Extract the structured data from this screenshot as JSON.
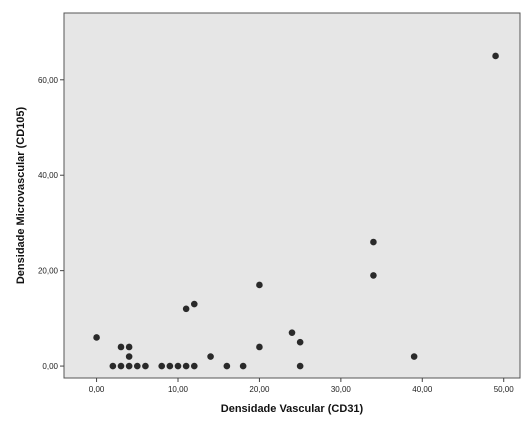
{
  "chart_data": {
    "type": "scatter",
    "title": "",
    "xlabel": "Densidade Vascular (CD31)",
    "ylabel": "Densidade Microvascular (CD105)",
    "xlim": [
      -4,
      52
    ],
    "ylim": [
      -2.5,
      74
    ],
    "x_ticks": [
      0,
      10,
      20,
      30,
      40,
      50
    ],
    "x_tick_labels": [
      "0,00",
      "10,00",
      "20,00",
      "30,00",
      "40,00",
      "50,00"
    ],
    "y_ticks": [
      0,
      20,
      40,
      60
    ],
    "y_tick_labels": [
      "0,00",
      "20,00",
      "40,00",
      "60,00"
    ],
    "grid": false,
    "colors": {
      "plot_background": "#e6e6e6",
      "marker": "#2a2a2a",
      "frame": "#555555"
    },
    "points": [
      {
        "x": 0,
        "y": 6
      },
      {
        "x": 2,
        "y": 0
      },
      {
        "x": 3,
        "y": 0
      },
      {
        "x": 3,
        "y": 4
      },
      {
        "x": 4,
        "y": 0
      },
      {
        "x": 4,
        "y": 2
      },
      {
        "x": 4,
        "y": 4
      },
      {
        "x": 5,
        "y": 0
      },
      {
        "x": 6,
        "y": 0
      },
      {
        "x": 8,
        "y": 0
      },
      {
        "x": 9,
        "y": 0
      },
      {
        "x": 10,
        "y": 0
      },
      {
        "x": 11,
        "y": 0
      },
      {
        "x": 11,
        "y": 12
      },
      {
        "x": 12,
        "y": 0
      },
      {
        "x": 12,
        "y": 13
      },
      {
        "x": 14,
        "y": 2
      },
      {
        "x": 16,
        "y": 0
      },
      {
        "x": 18,
        "y": 0
      },
      {
        "x": 20,
        "y": 4
      },
      {
        "x": 20,
        "y": 17
      },
      {
        "x": 24,
        "y": 7
      },
      {
        "x": 25,
        "y": 0
      },
      {
        "x": 25,
        "y": 5
      },
      {
        "x": 34,
        "y": 19
      },
      {
        "x": 34,
        "y": 26
      },
      {
        "x": 39,
        "y": 2
      },
      {
        "x": 49,
        "y": 65
      }
    ]
  }
}
